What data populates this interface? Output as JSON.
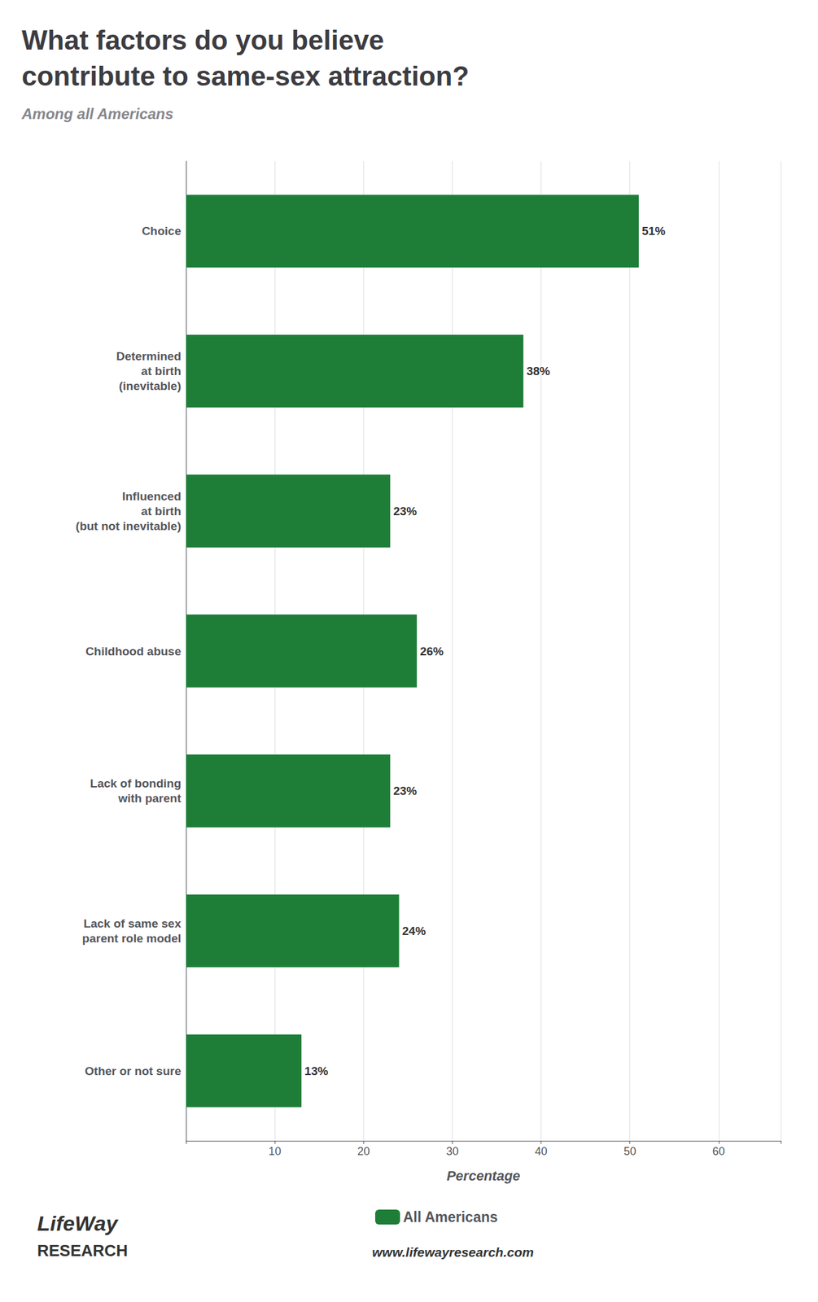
{
  "chart_data": {
    "type": "bar",
    "orientation": "horizontal",
    "title": "What factors do you believe\ncontribute to same-sex attraction?",
    "subtitle": "Among all Americans",
    "xlabel": "Percentage",
    "categories": [
      "Choice",
      "Determined\nat birth\n(inevitable)",
      "Influenced\nat birth\n(but not inevitable)",
      "Childhood abuse",
      "Lack of bonding\nwith parent",
      "Lack of same sex\nparent role model",
      "Other or not sure"
    ],
    "series": [
      {
        "name": "All Americans",
        "color": "#1e7e38",
        "values": [
          51,
          38,
          23,
          26,
          23,
          24,
          13
        ],
        "value_labels": [
          "51%",
          "38%",
          "23%",
          "26%",
          "23%",
          "24%",
          "13%"
        ]
      }
    ],
    "xlim": [
      0,
      67
    ],
    "xticks": [
      10,
      20,
      30,
      40,
      50,
      60
    ],
    "grid": true,
    "data_labels": true,
    "legend": "bottom",
    "annotations": [
      "LifeWay",
      "RESEARCH",
      "www.lifewayresearch.com"
    ]
  }
}
